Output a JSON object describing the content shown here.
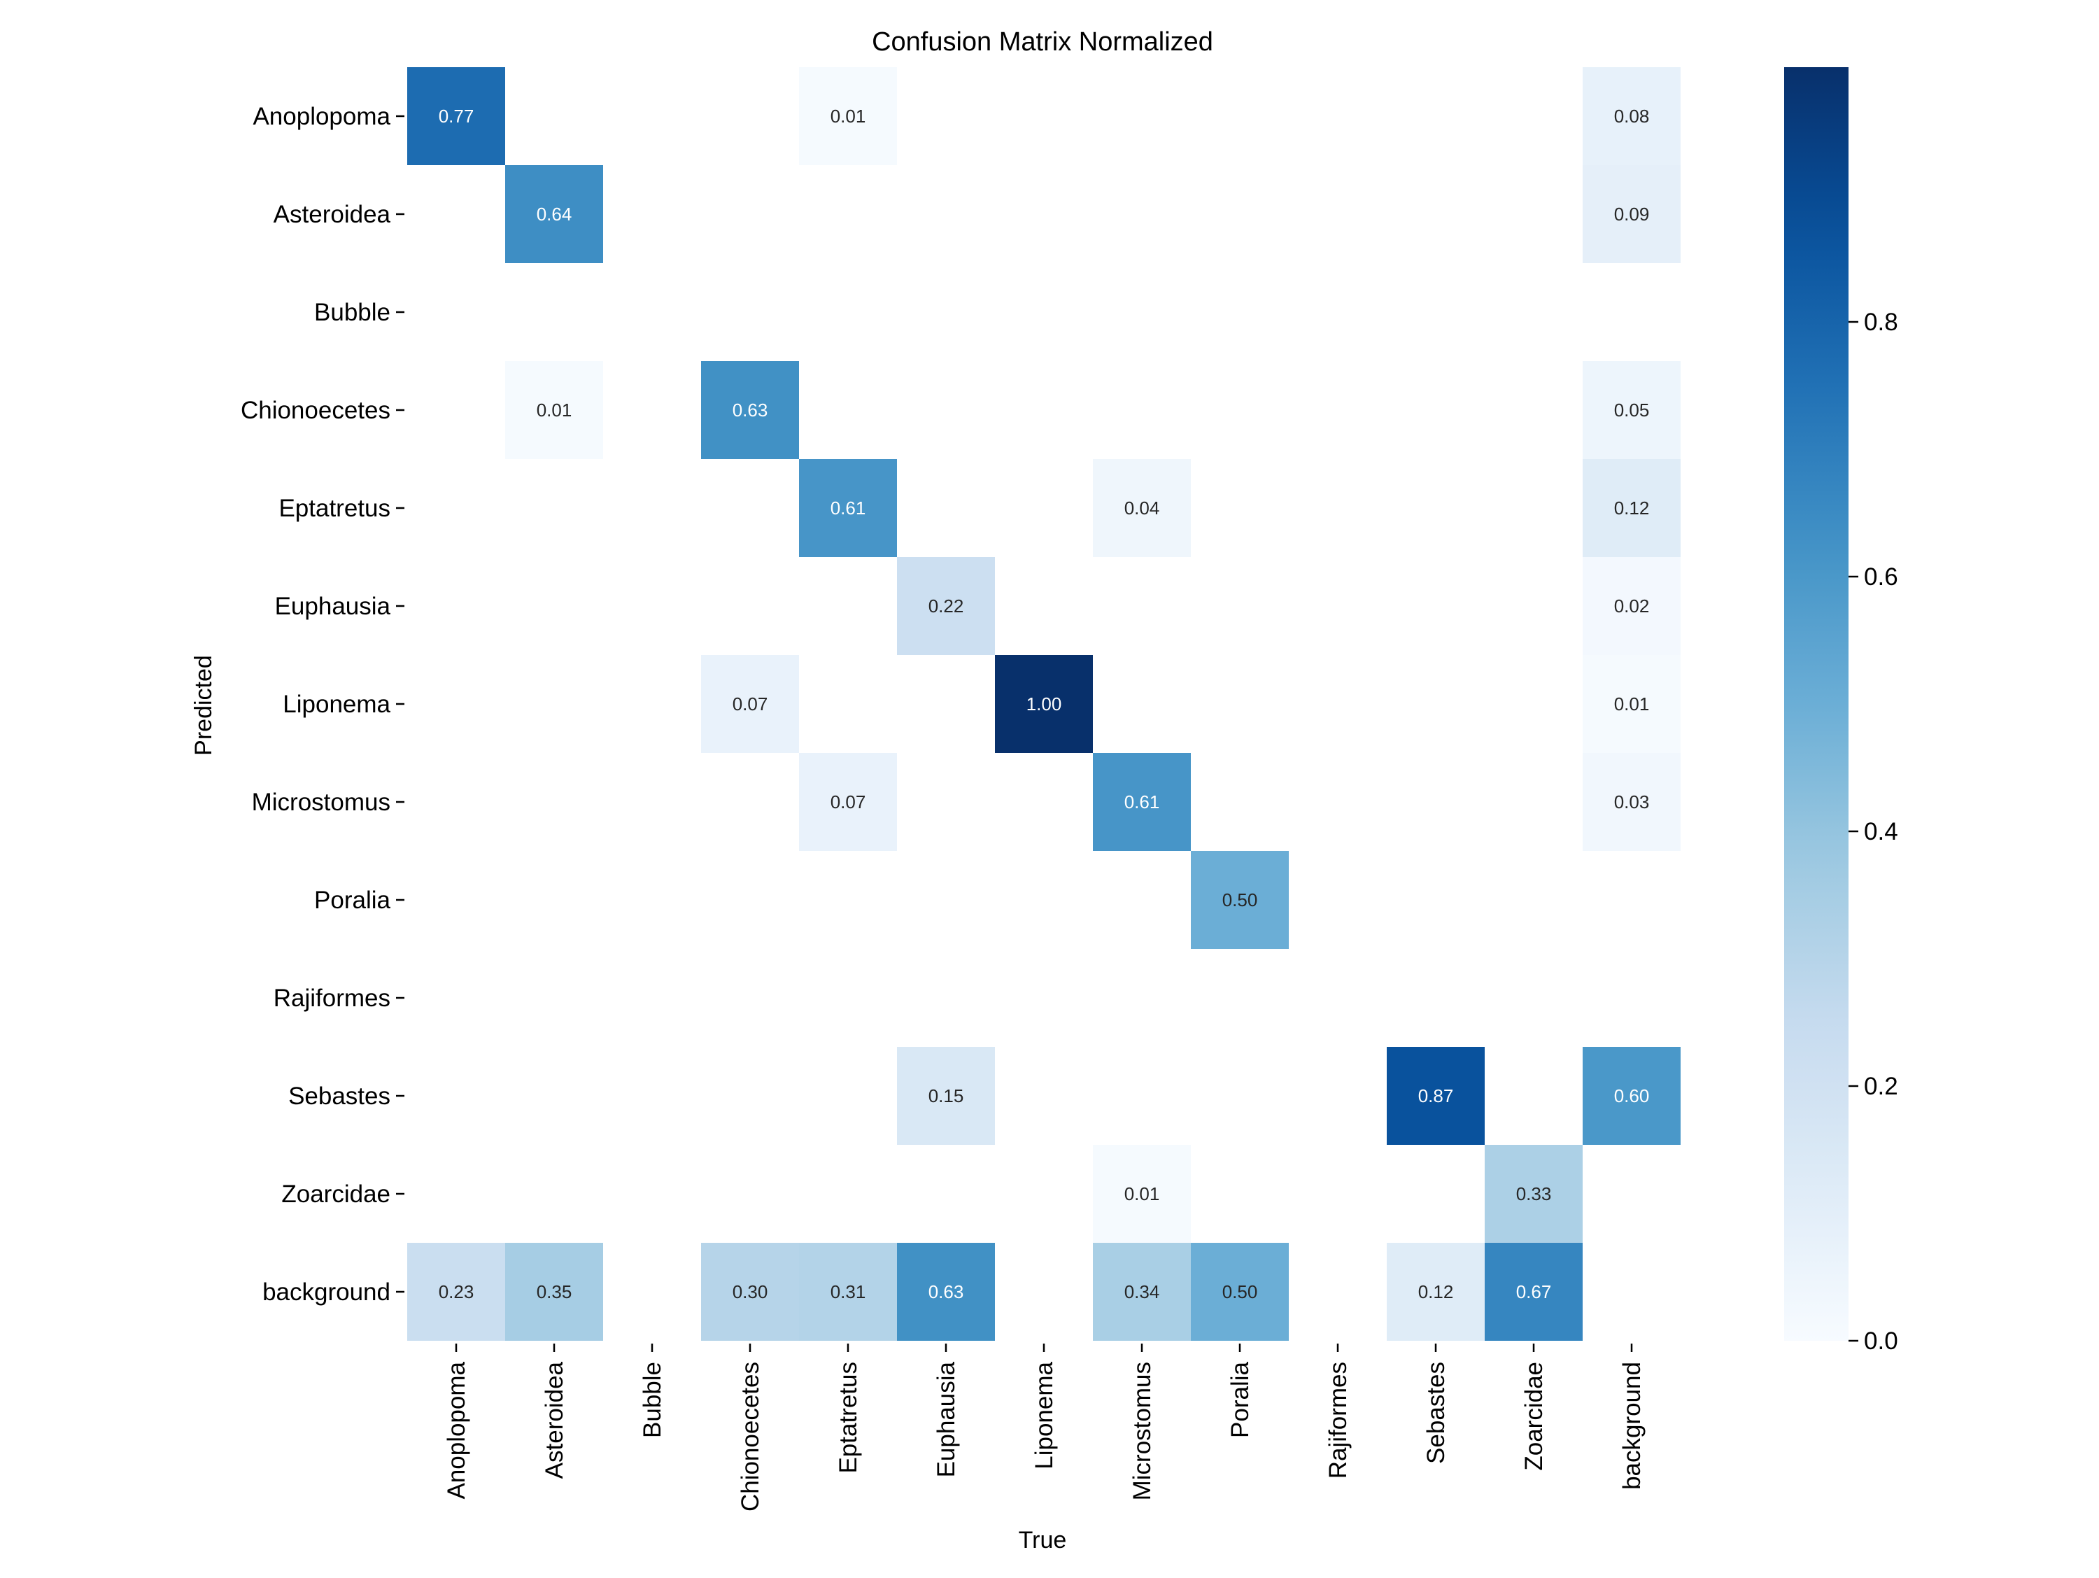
{
  "chart_data": {
    "type": "heatmap",
    "title": "Confusion Matrix Normalized",
    "xlabel": "True",
    "ylabel": "Predicted",
    "x_categories": [
      "Anoplopoma",
      "Asteroidea",
      "Bubble",
      "Chionoecetes",
      "Eptatretus",
      "Euphausia",
      "Liponema",
      "Microstomus",
      "Poralia",
      "Rajiformes",
      "Sebastes",
      "Zoarcidae",
      "background"
    ],
    "y_categories": [
      "Anoplopoma",
      "Asteroidea",
      "Bubble",
      "Chionoecetes",
      "Eptatretus",
      "Euphausia",
      "Liponema",
      "Microstomus",
      "Poralia",
      "Rajiformes",
      "Sebastes",
      "Zoarcidae",
      "background"
    ],
    "values": [
      [
        0.77,
        null,
        null,
        null,
        0.01,
        null,
        null,
        null,
        null,
        null,
        null,
        null,
        0.08
      ],
      [
        null,
        0.64,
        null,
        null,
        null,
        null,
        null,
        null,
        null,
        null,
        null,
        null,
        0.09
      ],
      [
        null,
        null,
        null,
        null,
        null,
        null,
        null,
        null,
        null,
        null,
        null,
        null,
        null
      ],
      [
        null,
        0.01,
        null,
        0.63,
        null,
        null,
        null,
        null,
        null,
        null,
        null,
        null,
        0.05
      ],
      [
        null,
        null,
        null,
        null,
        0.61,
        null,
        null,
        0.04,
        null,
        null,
        null,
        null,
        0.12
      ],
      [
        null,
        null,
        null,
        null,
        null,
        0.22,
        null,
        null,
        null,
        null,
        null,
        null,
        0.02
      ],
      [
        null,
        null,
        null,
        0.07,
        null,
        null,
        1.0,
        null,
        null,
        null,
        null,
        null,
        0.01
      ],
      [
        null,
        null,
        null,
        null,
        0.07,
        null,
        null,
        0.61,
        null,
        null,
        null,
        null,
        0.03
      ],
      [
        null,
        null,
        null,
        null,
        null,
        null,
        null,
        null,
        0.5,
        null,
        null,
        null,
        null
      ],
      [
        null,
        null,
        null,
        null,
        null,
        null,
        null,
        null,
        null,
        null,
        null,
        null,
        null
      ],
      [
        null,
        null,
        null,
        null,
        null,
        0.15,
        null,
        null,
        null,
        null,
        0.87,
        null,
        0.6
      ],
      [
        null,
        null,
        null,
        null,
        null,
        null,
        null,
        0.01,
        null,
        null,
        null,
        0.33,
        null
      ],
      [
        0.23,
        0.35,
        null,
        0.3,
        0.31,
        0.63,
        null,
        0.34,
        0.5,
        null,
        0.12,
        0.67,
        null
      ]
    ],
    "colorbar": {
      "colormap": "Blues",
      "range": [
        0,
        1
      ],
      "ticks": [
        0.0,
        0.2,
        0.4,
        0.6,
        0.8
      ],
      "tick_labels": [
        "0.0",
        "0.2",
        "0.4",
        "0.6",
        "0.8"
      ]
    },
    "legend": "none",
    "grid": false
  }
}
